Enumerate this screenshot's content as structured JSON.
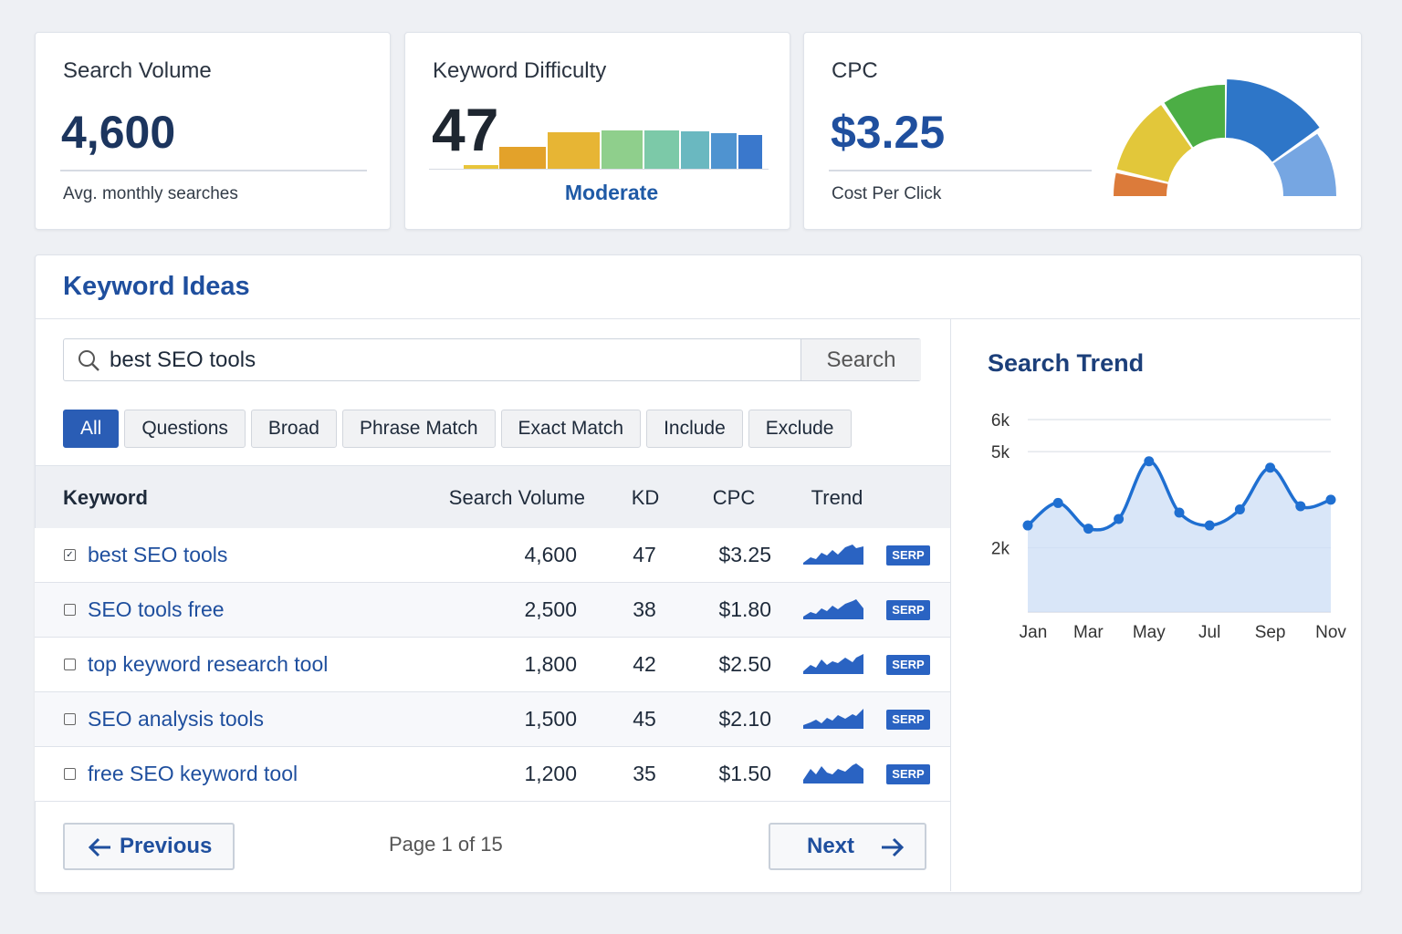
{
  "cards": {
    "search_volume": {
      "title": "Search Volume",
      "value": "4,600",
      "caption": "Avg. monthly searches"
    },
    "keyword_difficulty": {
      "title": "Keyword Difficulty",
      "value": "47",
      "caption": "Moderate"
    },
    "cpc": {
      "title": "CPC",
      "value": "$3.25",
      "caption": "Cost Per Click"
    }
  },
  "keyword_ideas": {
    "title": "Keyword Ideas",
    "search_query": "best SEO tools",
    "search_button": "Search",
    "filters": [
      "All",
      "Questions",
      "Broad",
      "Phrase Match",
      "Exact Match",
      "Include",
      "Exclude"
    ],
    "active_filter": 0,
    "table": {
      "headers": [
        "Keyword",
        "Search Volume",
        "KD",
        "CPC",
        "Trend"
      ],
      "rows": [
        {
          "checked": true,
          "keyword": "best SEO tools",
          "volume": "4,600",
          "kd": "47",
          "cpc": "$3.25",
          "badge": "SERP"
        },
        {
          "checked": false,
          "keyword": "SEO tools free",
          "volume": "2,500",
          "kd": "38",
          "cpc": "$1.80",
          "badge": "SERP"
        },
        {
          "checked": false,
          "keyword": "top keyword research tool",
          "volume": "1,800",
          "kd": "42",
          "cpc": "$2.50",
          "badge": "SERP"
        },
        {
          "checked": false,
          "keyword": "SEO analysis tools",
          "volume": "1,500",
          "kd": "45",
          "cpc": "$2.10",
          "badge": "SERP"
        },
        {
          "checked": false,
          "keyword": "free SEO keyword tool",
          "volume": "1,200",
          "kd": "35",
          "cpc": "$1.50",
          "badge": "SERP"
        }
      ]
    },
    "pagination": {
      "previous": "Previous",
      "status": "Page 1 of 15",
      "next": "Next"
    }
  },
  "chart_data": {
    "type": "line",
    "title": "Search Trend",
    "categories": [
      "Jan",
      null,
      "Mar",
      null,
      "May",
      null,
      "Jul",
      null,
      "Sep",
      null,
      "Nov"
    ],
    "values": [
      2700,
      3400,
      2600,
      2900,
      4700,
      3100,
      2700,
      3200,
      4500,
      3300,
      3500
    ],
    "color": "#1f6fd1",
    "ylim": [
      0,
      6000
    ],
    "yticks": [
      {
        "value": 2000,
        "label": "2k"
      },
      {
        "value": 5000,
        "label": "5k"
      },
      {
        "value": 6000,
        "label": "6k"
      }
    ],
    "grid": true
  }
}
